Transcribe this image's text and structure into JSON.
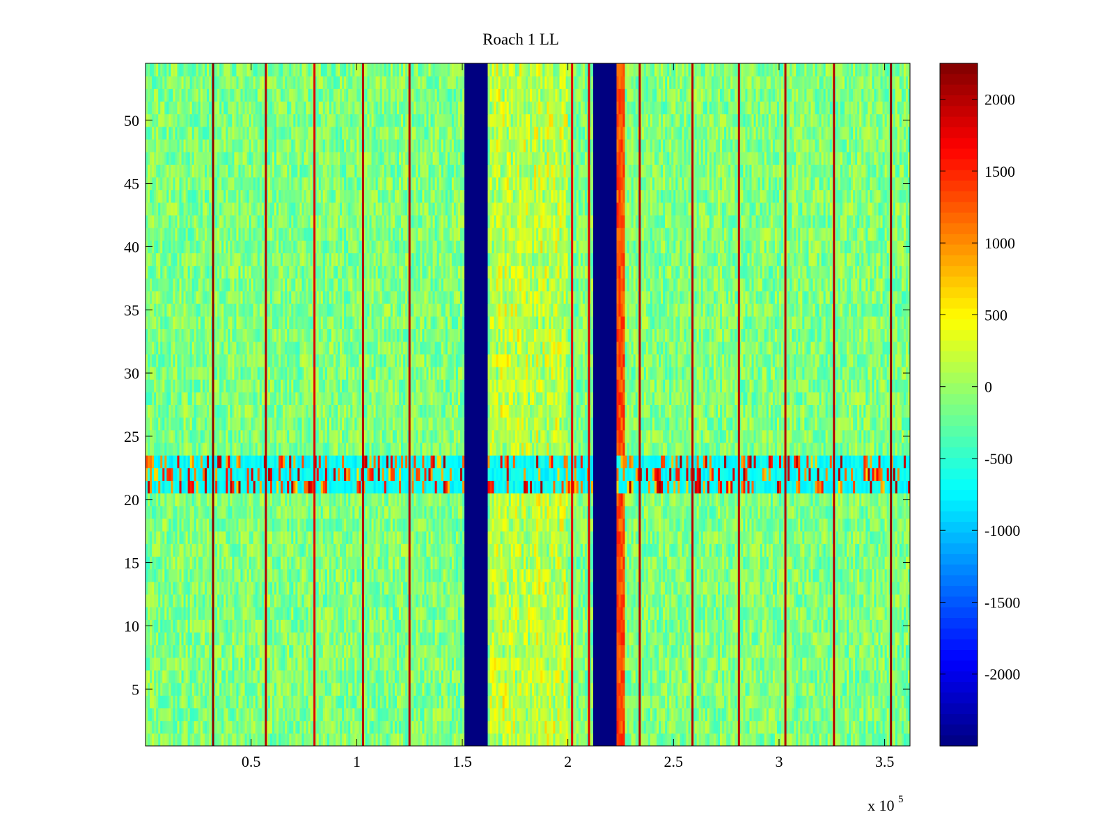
{
  "chart_data": {
    "type": "heatmap",
    "title": "Roach 1 LL",
    "xlabel": "",
    "ylabel": "",
    "x_exponent_label": "x 10",
    "x_exponent_power": "5",
    "xlim": [
      0,
      362000
    ],
    "ylim": [
      0.5,
      54.5
    ],
    "x_ticks": [
      {
        "value": 50000,
        "label": "0.5"
      },
      {
        "value": 100000,
        "label": "1"
      },
      {
        "value": 150000,
        "label": "1.5"
      },
      {
        "value": 200000,
        "label": "2"
      },
      {
        "value": 250000,
        "label": "2.5"
      },
      {
        "value": 300000,
        "label": "3"
      },
      {
        "value": 350000,
        "label": "3.5"
      }
    ],
    "y_ticks": [
      {
        "value": 5,
        "label": "5"
      },
      {
        "value": 10,
        "label": "10"
      },
      {
        "value": 15,
        "label": "15"
      },
      {
        "value": 20,
        "label": "20"
      },
      {
        "value": 25,
        "label": "25"
      },
      {
        "value": 30,
        "label": "30"
      },
      {
        "value": 35,
        "label": "35"
      },
      {
        "value": 40,
        "label": "40"
      },
      {
        "value": 45,
        "label": "45"
      },
      {
        "value": 50,
        "label": "50"
      }
    ],
    "colorbar": {
      "colormap": "jet",
      "clim": [
        -2500,
        2250
      ],
      "ticks": [
        {
          "value": 2000,
          "label": "2000"
        },
        {
          "value": 1500,
          "label": "1500"
        },
        {
          "value": 1000,
          "label": "1000"
        },
        {
          "value": 500,
          "label": "500"
        },
        {
          "value": 0,
          "label": "0"
        },
        {
          "value": -500,
          "label": "-500"
        },
        {
          "value": -1000,
          "label": "-1000"
        },
        {
          "value": -1500,
          "label": "-1500"
        },
        {
          "value": -2000,
          "label": "-2000"
        }
      ]
    },
    "background_level": -120,
    "notable_features": {
      "low_bands": [
        {
          "x_start": 151500,
          "x_end": 162000,
          "value": -2500
        },
        {
          "x_start": 212000,
          "x_end": 223000,
          "value": -2500
        }
      ],
      "hot_lines": [
        {
          "x": 32000,
          "value": 2200
        },
        {
          "x": 57000,
          "value": 2000
        },
        {
          "x": 80000,
          "value": 1800
        },
        {
          "x": 103000,
          "value": 2000
        },
        {
          "x": 125000,
          "value": 2000
        },
        {
          "x": 202000,
          "value": 1800
        },
        {
          "x": 210000,
          "value": 1800
        },
        {
          "x": 234000,
          "value": 2000
        },
        {
          "x": 259000,
          "value": 2000
        },
        {
          "x": 281000,
          "value": 2000
        },
        {
          "x": 303000,
          "value": 2000
        },
        {
          "x": 326000,
          "value": 2000
        },
        {
          "x": 353000,
          "value": 2200
        }
      ],
      "warm_edge": {
        "x_start": 223000,
        "x_end": 227000,
        "value": 1300
      },
      "warm_region": {
        "x_start": 163000,
        "x_end": 200000,
        "value": 200
      },
      "hot_rows": {
        "y_start": 21,
        "y_end": 23,
        "value": 2100,
        "base_value": -700
      }
    }
  }
}
